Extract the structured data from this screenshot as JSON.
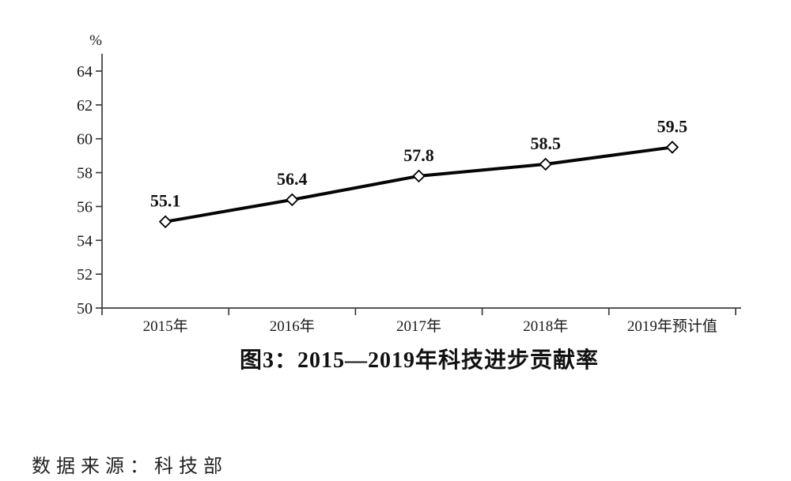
{
  "figure": {
    "caption": "图3：2015—2019年科技进步贡献率",
    "source_note": "数据来源：科技部",
    "unit_label": "%"
  },
  "chart_data": {
    "type": "line",
    "title": "图3：2015—2019年科技进步贡献率",
    "categories": [
      "2015年",
      "2016年",
      "2017年",
      "2018年",
      "2019年预计值"
    ],
    "series": [
      {
        "name": "科技进步贡献率",
        "values": [
          55.1,
          56.4,
          57.8,
          58.5,
          59.5
        ]
      }
    ],
    "data_labels": [
      "55.1",
      "56.4",
      "57.8",
      "58.5",
      "59.5"
    ],
    "xlabel": "",
    "ylabel": "%",
    "ylim": [
      50,
      64
    ],
    "yticks": [
      50,
      52,
      54,
      56,
      58,
      60,
      62,
      64
    ],
    "grid": false,
    "legend_position": "none",
    "marker_style": "open-diamond",
    "line_color": "#050505",
    "marker_fill": "#ffffff",
    "axis_color": "#3d3d3d",
    "text_color": "#1a1a1a",
    "source": "数据来源：科技部"
  }
}
